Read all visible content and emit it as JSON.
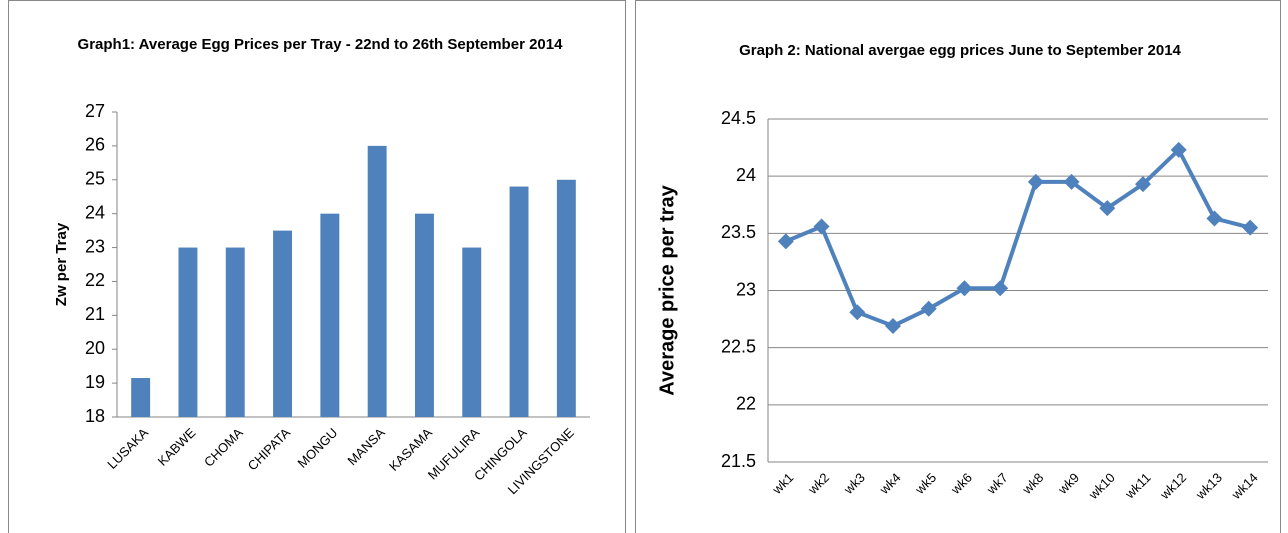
{
  "chart_data": [
    {
      "type": "bar",
      "title": "Graph1: Average Egg Prices per Tray -  22nd to 26th September  2014",
      "y_label": "Zw per Tray",
      "categories": [
        "LUSAKA",
        "KABWE",
        "CHOMA",
        "CHIPATA",
        "MONGU",
        "MANSA",
        "KASAMA",
        "MUFULIRA",
        "CHINGOLA",
        "LIVINGSTONE"
      ],
      "values": [
        19.15,
        23,
        23,
        23.5,
        24,
        26,
        24,
        23,
        24.8,
        25
      ],
      "color": "#4f81bd",
      "ylim": [
        18,
        27
      ],
      "yticks": [
        18,
        19,
        20,
        21,
        22,
        23,
        24,
        25,
        26,
        27
      ],
      "grid": false
    },
    {
      "type": "line",
      "title": "Graph 2: National avergae egg prices June to September 2014",
      "y_label": "Average price per tray",
      "categories": [
        "wk1",
        "wk2",
        "wk3",
        "wk4",
        "wk5",
        "wk6",
        "wk7",
        "wk8",
        "wk9",
        "wk10",
        "wk11",
        "wk12",
        "wk13",
        "wk14"
      ],
      "values": [
        23.43,
        23.56,
        22.81,
        22.69,
        22.84,
        23.02,
        23.02,
        23.95,
        23.95,
        23.72,
        23.93,
        24.23,
        23.63,
        23.55
      ],
      "color": "#4f81bd",
      "ylim": [
        21.5,
        24.5
      ],
      "yticks": [
        21.5,
        22,
        22.5,
        23,
        23.5,
        24,
        24.5
      ],
      "grid": true
    }
  ]
}
